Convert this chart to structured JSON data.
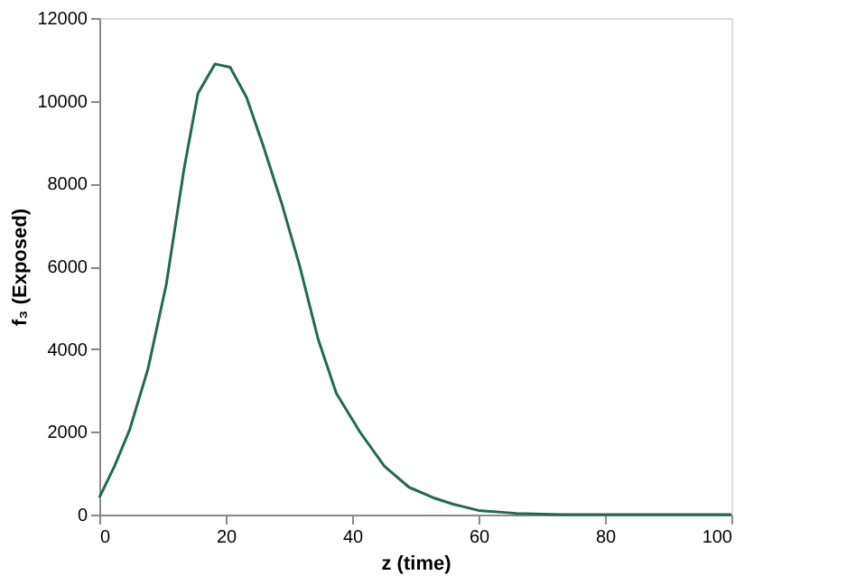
{
  "chart_data": {
    "type": "line",
    "xlabel": "z (time)",
    "ylabel": "f₃ (Exposed)",
    "x": [
      0,
      2.4,
      4.8,
      7.7,
      10.6,
      13.4,
      15.6,
      18.3,
      20.7,
      23.3,
      25.9,
      28.8,
      31.7,
      34.6,
      37.5,
      41.3,
      45.1,
      49,
      52.8,
      56,
      60,
      66,
      73,
      80,
      90,
      100
    ],
    "series": [
      {
        "color": "#1f6b4f",
        "values": [
          410,
          1170,
          2050,
          3520,
          5570,
          8350,
          10180,
          10890,
          10810,
          10080,
          8930,
          7550,
          6010,
          4250,
          2930,
          1980,
          1170,
          660,
          410,
          250,
          100,
          30,
          0,
          0,
          0,
          0
        ]
      }
    ],
    "xlim": [
      0,
      100
    ],
    "ylim": [
      0,
      12000
    ],
    "xticks": [
      0,
      20,
      40,
      60,
      80,
      100
    ],
    "yticks": [
      0,
      2000,
      4000,
      6000,
      8000,
      10000,
      12000
    ],
    "grid": false,
    "legend": false,
    "marker": "none",
    "line_style": "solid"
  }
}
